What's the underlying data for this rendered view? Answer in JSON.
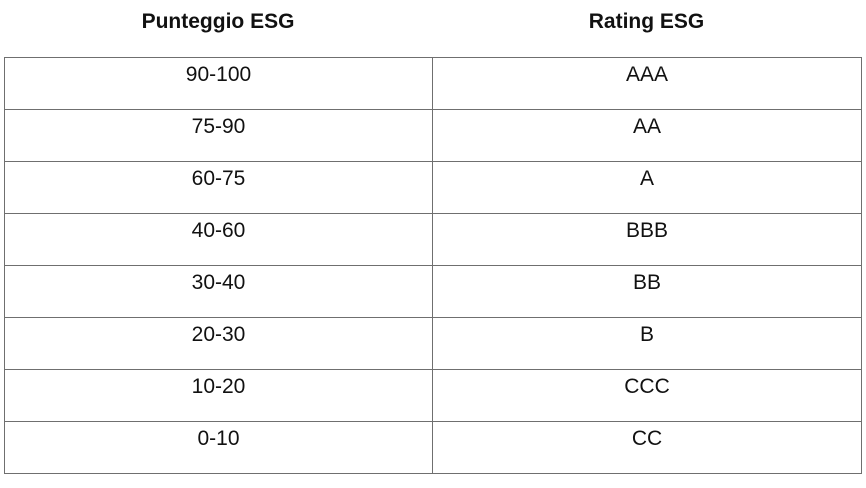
{
  "table": {
    "headers": [
      "Punteggio ESG",
      "Rating ESG"
    ],
    "rows": [
      [
        "90-100",
        "AAA"
      ],
      [
        "75-90",
        "AA"
      ],
      [
        "60-75",
        "A"
      ],
      [
        "40-60",
        "BBB"
      ],
      [
        "30-40",
        "BB"
      ],
      [
        "20-30",
        "B"
      ],
      [
        "10-20",
        "CCC"
      ],
      [
        "0-10",
        "CC"
      ]
    ]
  }
}
